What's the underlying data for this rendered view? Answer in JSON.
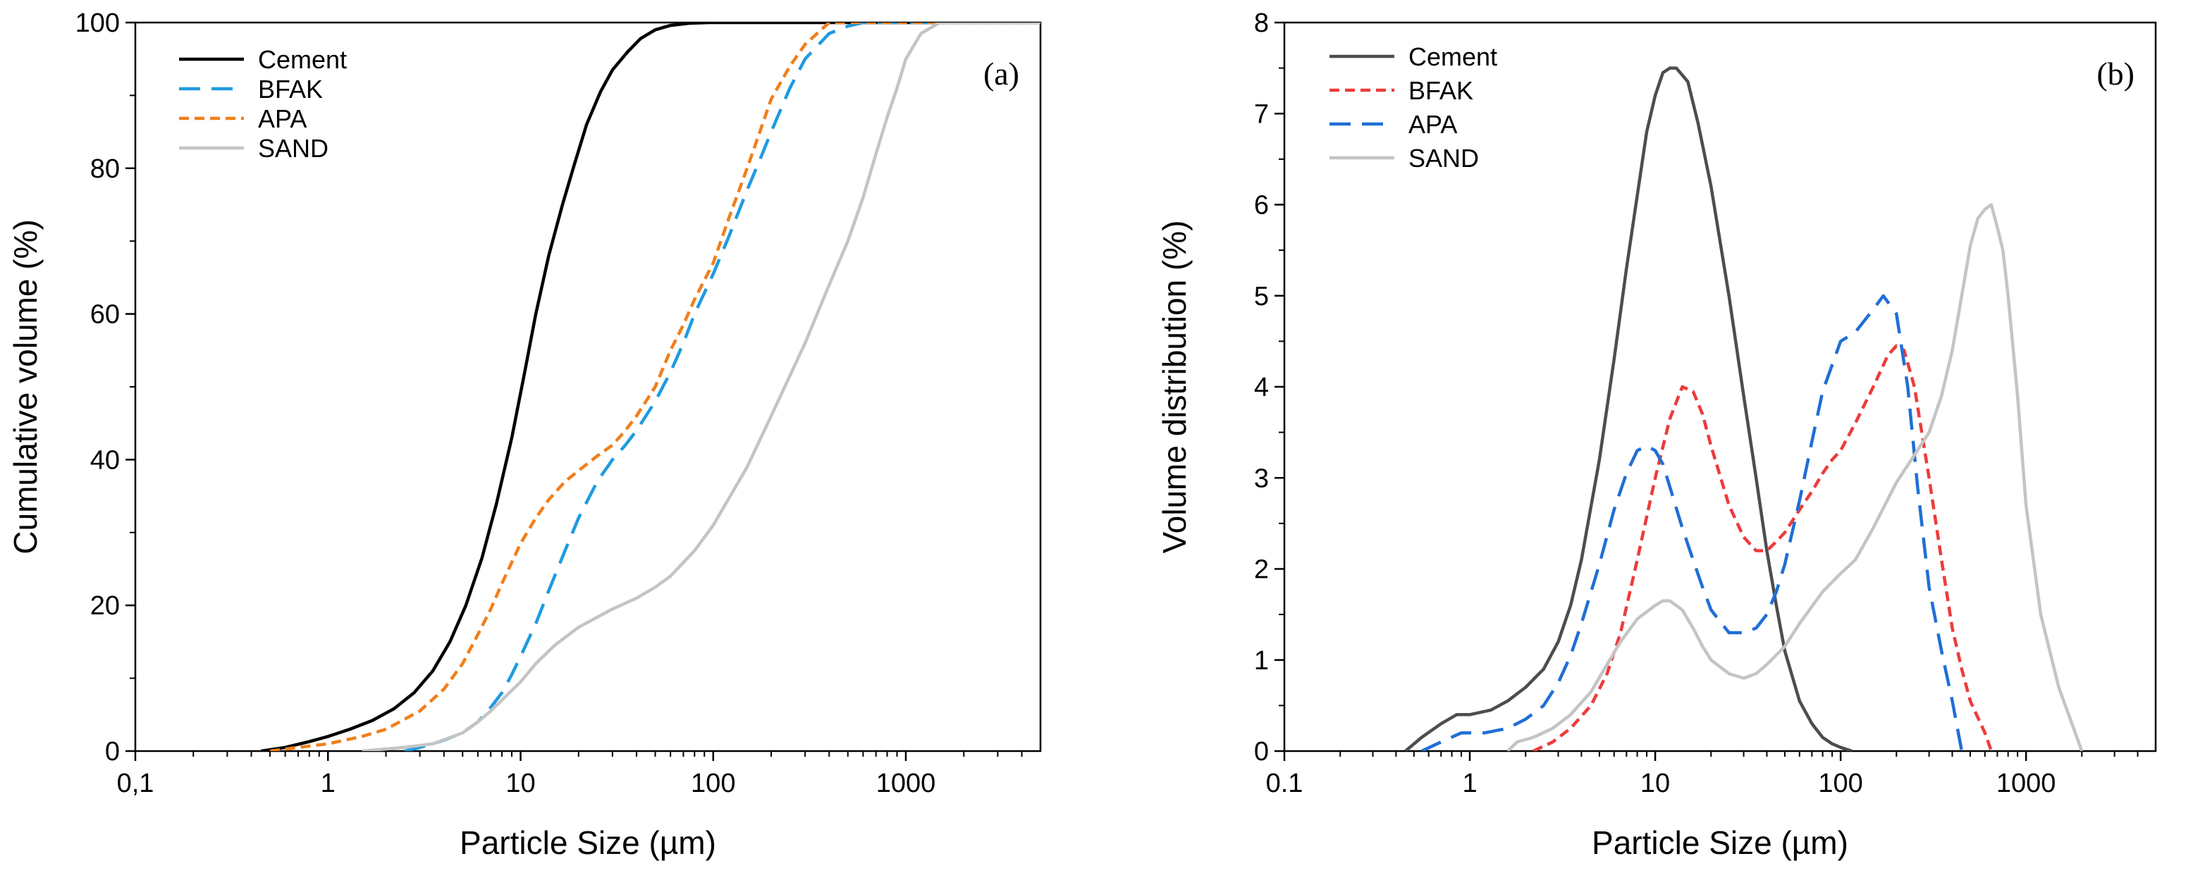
{
  "chart_data": [
    {
      "type": "line",
      "panel_label": "(a)",
      "xlabel": "Particle Size (µm)",
      "ylabel": "Cumulative volume (%)",
      "x_scale": "log",
      "xlim": [
        0.1,
        5000
      ],
      "ylim": [
        0,
        100
      ],
      "x_ticks": [
        0.1,
        1,
        10,
        100,
        1000
      ],
      "x_tick_labels": [
        "0,1",
        "1",
        "10",
        "100",
        "1000"
      ],
      "y_ticks": [
        0,
        20,
        40,
        60,
        80,
        100
      ],
      "y_tick_labels": [
        "0",
        "20",
        "40",
        "60",
        "80",
        "100"
      ],
      "grid": false,
      "legend_position": "top-left",
      "series": [
        {
          "name": "Cement",
          "color": "#000000",
          "dash": "solid",
          "x": [
            0.45,
            0.6,
            0.8,
            1.0,
            1.3,
            1.7,
            2.2,
            2.8,
            3.5,
            4.3,
            5.2,
            6.3,
            7.5,
            9,
            10.5,
            12,
            14,
            16.5,
            19,
            22,
            26,
            30,
            36,
            42,
            50,
            60,
            75,
            95,
            130,
            200,
            5000
          ],
          "y": [
            0,
            0.5,
            1.3,
            2,
            3,
            4.2,
            5.8,
            8,
            11,
            15,
            20,
            26.5,
            34,
            43,
            52,
            60,
            68,
            75,
            80.5,
            86,
            90.5,
            93.5,
            96,
            97.8,
            99,
            99.6,
            99.9,
            100,
            100,
            100,
            100
          ]
        },
        {
          "name": "BFAK",
          "color": "#1e9be0",
          "dash": "long",
          "x": [
            2.5,
            3,
            3.5,
            4,
            5,
            6,
            7,
            8,
            9,
            10,
            12,
            14,
            17,
            20,
            25,
            30,
            35,
            40,
            50,
            60,
            70,
            80,
            100,
            120,
            150,
            180,
            200,
            250,
            300,
            400,
            500,
            600,
            700,
            5000
          ],
          "y": [
            0,
            0.5,
            1,
            1.5,
            2.5,
            4,
            6,
            8,
            10.5,
            13,
            17.5,
            22,
            27.5,
            32,
            37,
            40,
            42,
            44,
            48,
            52,
            56,
            60,
            65.5,
            70.5,
            77,
            82,
            85,
            91,
            95,
            98.5,
            99.5,
            100,
            100,
            100
          ]
        },
        {
          "name": "APA",
          "color": "#f07f1c",
          "dash": "short",
          "x": [
            0.5,
            0.7,
            1,
            1.5,
            2,
            3,
            4,
            5,
            6,
            7,
            8,
            10,
            12,
            14,
            17,
            20,
            25,
            30,
            35,
            40,
            50,
            60,
            70,
            80,
            100,
            120,
            150,
            180,
            200,
            250,
            300,
            400,
            5000
          ],
          "y": [
            0,
            0.5,
            1,
            2,
            3,
            5.5,
            8.5,
            12,
            16,
            19.5,
            23,
            28.5,
            32,
            34.5,
            37,
            38.5,
            40.5,
            42,
            44,
            46,
            50,
            55,
            58.5,
            62,
            67,
            73,
            80,
            86,
            89.5,
            94,
            97,
            100,
            100
          ]
        },
        {
          "name": "SAND",
          "color": "#c4c4c4",
          "dash": "solid",
          "x": [
            1.5,
            2.5,
            3.5,
            5,
            6,
            7,
            8,
            10,
            12,
            15,
            20,
            30,
            40,
            50,
            60,
            80,
            100,
            150,
            200,
            300,
            400,
            500,
            600,
            700,
            800,
            900,
            1000,
            1200,
            1500,
            2000,
            5000
          ],
          "y": [
            0,
            0.5,
            1,
            2.5,
            4,
            5.5,
            7,
            9.5,
            12,
            14.5,
            17,
            19.5,
            21,
            22.5,
            24,
            27.5,
            31,
            39,
            46,
            56,
            64,
            70,
            76,
            82,
            87,
            91,
            95,
            98.5,
            100,
            100,
            100
          ]
        }
      ]
    },
    {
      "type": "line",
      "panel_label": "(b)",
      "xlabel": "Particle Size (µm)",
      "ylabel": "Volume distribution (%)",
      "x_scale": "log",
      "xlim": [
        0.1,
        5000
      ],
      "ylim": [
        0,
        8
      ],
      "x_ticks": [
        0.1,
        1,
        10,
        100,
        1000
      ],
      "x_tick_labels": [
        "0.1",
        "1",
        "10",
        "100",
        "1000"
      ],
      "y_ticks": [
        0,
        1,
        2,
        3,
        4,
        5,
        6,
        7,
        8
      ],
      "y_tick_labels": [
        "0",
        "1",
        "2",
        "3",
        "4",
        "5",
        "6",
        "7",
        "8"
      ],
      "grid": false,
      "legend_position": "top-left",
      "series": [
        {
          "name": "Cement",
          "color": "#4d4d4d",
          "dash": "solid",
          "x": [
            0.45,
            0.55,
            0.7,
            0.85,
            1,
            1.3,
            1.6,
            2,
            2.5,
            3,
            3.5,
            4,
            5,
            6,
            7,
            8,
            9,
            10,
            11,
            12,
            13,
            15,
            17,
            20,
            25,
            30,
            35,
            40,
            45,
            50,
            60,
            70,
            80,
            90,
            100,
            115
          ],
          "y": [
            0,
            0.15,
            0.3,
            0.4,
            0.4,
            0.45,
            0.55,
            0.7,
            0.9,
            1.2,
            1.6,
            2.1,
            3.2,
            4.3,
            5.3,
            6.1,
            6.8,
            7.2,
            7.45,
            7.5,
            7.5,
            7.35,
            6.9,
            6.2,
            5,
            3.9,
            3,
            2.2,
            1.6,
            1.1,
            0.55,
            0.3,
            0.15,
            0.08,
            0.04,
            0
          ]
        },
        {
          "name": "BFAK",
          "color": "#ee3b3b",
          "dash": "short",
          "x": [
            2.2,
            2.8,
            3.5,
            4.5,
            5.5,
            6.5,
            8,
            10,
            12,
            14,
            16,
            18,
            20,
            25,
            30,
            35,
            40,
            45,
            50,
            60,
            70,
            80,
            90,
            100,
            120,
            150,
            180,
            200,
            220,
            250,
            300,
            350,
            400,
            450,
            500,
            600,
            650
          ],
          "y": [
            0,
            0.1,
            0.25,
            0.5,
            0.85,
            1.3,
            2.1,
            3,
            3.65,
            4,
            3.95,
            3.7,
            3.35,
            2.7,
            2.35,
            2.2,
            2.2,
            2.3,
            2.4,
            2.65,
            2.85,
            3.05,
            3.2,
            3.3,
            3.6,
            4,
            4.35,
            4.45,
            4.4,
            4,
            3,
            2.1,
            1.35,
            0.9,
            0.55,
            0.2,
            0
          ]
        },
        {
          "name": "APA",
          "color": "#1f6fd6",
          "dash": "long",
          "x": [
            0.55,
            0.7,
            0.9,
            1.2,
            1.6,
            2,
            2.5,
            3,
            3.5,
            4,
            5,
            6,
            7,
            8,
            9,
            10,
            11,
            12,
            14,
            16,
            18,
            20,
            25,
            30,
            35,
            40,
            45,
            50,
            60,
            70,
            80,
            100,
            120,
            150,
            170,
            200,
            230,
            260,
            300,
            350,
            400,
            450
          ],
          "y": [
            0,
            0.1,
            0.2,
            0.2,
            0.25,
            0.35,
            0.5,
            0.75,
            1.05,
            1.4,
            2.05,
            2.65,
            3.05,
            3.3,
            3.35,
            3.3,
            3.15,
            2.9,
            2.45,
            2.1,
            1.8,
            1.55,
            1.3,
            1.3,
            1.35,
            1.5,
            1.75,
            2.05,
            2.75,
            3.4,
            3.95,
            4.5,
            4.6,
            4.85,
            5,
            4.8,
            4,
            2.9,
            1.8,
            1.1,
            0.55,
            0
          ]
        },
        {
          "name": "SAND",
          "color": "#c4c4c4",
          "dash": "solid",
          "x": [
            1.6,
            1.8,
            2.2,
            2.8,
            3.5,
            4.5,
            5.5,
            6.5,
            8,
            10,
            11,
            12,
            14,
            16,
            18,
            20,
            25,
            30,
            35,
            40,
            50,
            60,
            80,
            100,
            120,
            150,
            200,
            250,
            300,
            350,
            400,
            450,
            500,
            550,
            600,
            650,
            700,
            750,
            800,
            900,
            1000,
            1200,
            1500,
            2000
          ],
          "y": [
            0,
            0.1,
            0.15,
            0.25,
            0.4,
            0.65,
            0.95,
            1.2,
            1.45,
            1.6,
            1.65,
            1.65,
            1.55,
            1.35,
            1.15,
            1.0,
            0.85,
            0.8,
            0.85,
            0.95,
            1.15,
            1.4,
            1.75,
            1.95,
            2.1,
            2.45,
            2.95,
            3.25,
            3.5,
            3.9,
            4.4,
            5,
            5.55,
            5.85,
            5.95,
            6,
            5.75,
            5.5,
            5.0,
            3.9,
            2.7,
            1.5,
            0.7,
            0
          ]
        }
      ]
    }
  ]
}
